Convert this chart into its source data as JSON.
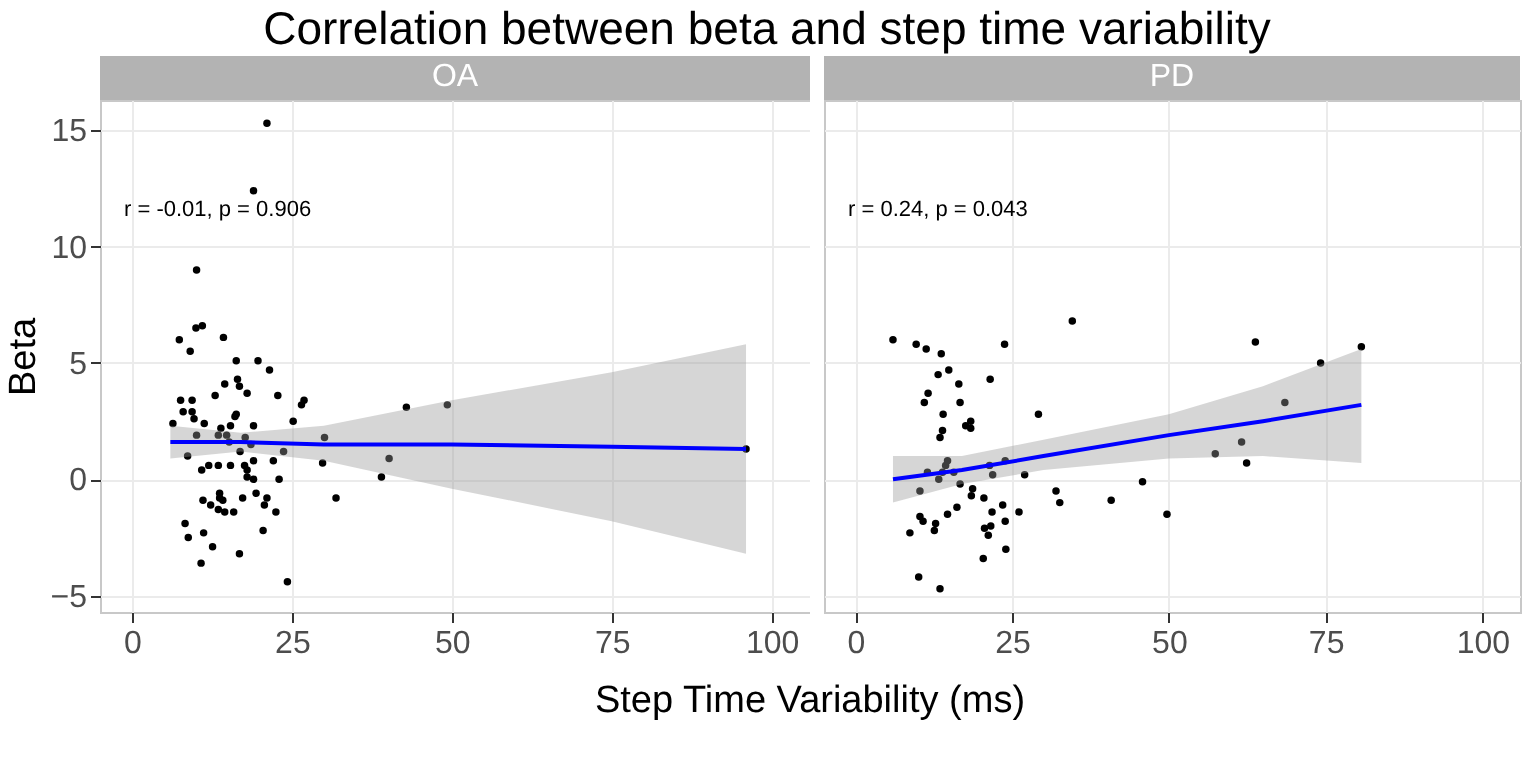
{
  "chart_data": [
    {
      "type": "scatter",
      "title": "Correlation between beta and step time variability",
      "subtitle": "OA",
      "xlabel": "Step Time Variability (ms)",
      "ylabel": "Beta",
      "annotations": [
        "r = -0.01, p = 0.906"
      ],
      "xlim": [
        -5,
        106
      ],
      "xticks": [
        0,
        25,
        50,
        75,
        100
      ],
      "ylim": [
        -5.7,
        16.3
      ],
      "yticks": [
        -5,
        0,
        5,
        10,
        15
      ],
      "grid": true,
      "series": [
        {
          "type": "scatter",
          "marker": "circle",
          "color": "#000000",
          "x": [
            21.1,
            19.0,
            10.1,
            10.0,
            11.0,
            7.4,
            9.1,
            14.3,
            16.3,
            19.7,
            21.5,
            16.5,
            16.8,
            14.5,
            18.0,
            13.0,
            22.8,
            7.6,
            9.4,
            26.9,
            26.5,
            8.0,
            9.4,
            16.3,
            16.1,
            6.4,
            9.7,
            11.3,
            13.9,
            15.4,
            14.8,
            10.1,
            19.0,
            25.2,
            17.7,
            13.5,
            15.2,
            18.6,
            30.1,
            42.9,
            49.3,
            8.7,
            16.9,
            23.7,
            29.8,
            40.2,
            39.0,
            22.1,
            10.9,
            12.0,
            13.5,
            15.4,
            17.6,
            18.0,
            19.0,
            18.0,
            19.0,
            23.0,
            11.1,
            12.3,
            13.7,
            13.7,
            14.2,
            17.3,
            19.4,
            21.1,
            13.5,
            14.5,
            15.9,
            20.7,
            22.5,
            31.9,
            8.3,
            8.8,
            11.2,
            12.6,
            20.5,
            16.8,
            10.8,
            24.3,
            96.0
          ],
          "values": [
            15.3,
            12.4,
            9.0,
            6.5,
            6.6,
            6.0,
            5.5,
            6.1,
            5.1,
            5.1,
            4.7,
            4.3,
            4.0,
            4.1,
            3.7,
            3.6,
            3.6,
            3.4,
            3.4,
            3.4,
            3.2,
            2.9,
            2.9,
            2.8,
            2.7,
            2.4,
            2.6,
            2.4,
            2.2,
            2.3,
            1.9,
            1.9,
            2.3,
            2.5,
            1.8,
            1.9,
            1.6,
            1.5,
            1.8,
            3.1,
            3.2,
            1.0,
            1.2,
            1.2,
            0.7,
            0.9,
            0.1,
            0.8,
            0.4,
            0.6,
            0.6,
            0.6,
            0.6,
            0.4,
            0.8,
            0.1,
            0.0,
            0.0,
            -0.9,
            -1.1,
            -0.6,
            -0.8,
            -0.9,
            -0.8,
            -0.6,
            -0.8,
            -1.3,
            -1.4,
            -1.4,
            -1.1,
            -1.4,
            -0.8,
            -1.9,
            -2.5,
            -2.3,
            -2.9,
            -2.2,
            -3.2,
            -3.6,
            -4.4,
            1.3
          ]
        },
        {
          "type": "line",
          "marker": "none",
          "line_style": "solid",
          "color": "#0000ff",
          "x": [
            6,
            17,
            30,
            50,
            75,
            96
          ],
          "values": [
            1.6,
            1.6,
            1.5,
            1.5,
            1.4,
            1.3
          ],
          "lower": [
            0.9,
            1.2,
            0.8,
            -0.4,
            -1.8,
            -3.2
          ],
          "upper": [
            2.3,
            2.0,
            2.3,
            3.4,
            4.6,
            5.8
          ]
        }
      ]
    },
    {
      "type": "scatter",
      "subtitle": "PD",
      "annotations": [
        "r = 0.24, p = 0.043"
      ],
      "xlim": [
        -5,
        106
      ],
      "xticks": [
        0,
        25,
        50,
        75,
        100
      ],
      "ylim": [
        -5.7,
        16.3
      ],
      "yticks": [
        -5,
        0,
        5,
        10,
        15
      ],
      "grid": true,
      "tick_labels": "x",
      "series": [
        {
          "type": "scatter",
          "marker": "circle",
          "color": "#000000",
          "x": [
            6.0,
            9.7,
            11.3,
            13.7,
            23.8,
            34.6,
            13.2,
            14.9,
            21.5,
            16.5,
            11.6,
            11.0,
            16.7,
            14.0,
            29.2,
            18.4,
            17.6,
            18.4,
            13.9,
            13.5,
            23.9,
            14.7,
            14.4,
            13.9,
            11.5,
            21.4,
            21.9,
            27.0,
            13.3,
            15.7,
            16.7,
            10.3,
            18.7,
            18.5,
            32.0,
            32.6,
            45.8,
            40.8,
            49.7,
            20.5,
            23.5,
            16.2,
            14.7,
            10.3,
            10.8,
            12.8,
            21.8,
            26.1,
            23.9,
            20.6,
            21.6,
            12.6,
            8.7,
            21.2,
            24.0,
            20.4,
            10.1,
            13.5,
            63.8,
            74.2,
            80.7,
            68.5,
            61.6,
            57.4,
            62.4
          ],
          "values": [
            6.0,
            5.8,
            5.6,
            5.4,
            5.8,
            6.8,
            4.5,
            4.7,
            4.3,
            4.1,
            3.7,
            3.3,
            3.3,
            2.8,
            2.8,
            2.5,
            2.3,
            2.2,
            2.1,
            1.8,
            0.8,
            0.8,
            0.6,
            0.3,
            0.3,
            0.6,
            0.2,
            0.2,
            0.0,
            0.3,
            -0.2,
            -0.5,
            -0.4,
            -0.7,
            -0.5,
            -1.0,
            -0.1,
            -0.9,
            -1.5,
            -0.8,
            -1.1,
            -1.2,
            -1.5,
            -1.6,
            -1.8,
            -1.9,
            -1.4,
            -1.4,
            -1.8,
            -2.1,
            -2.0,
            -2.2,
            -2.3,
            -2.4,
            -3.0,
            -3.4,
            -4.2,
            -4.7,
            5.9,
            5.0,
            5.7,
            3.3,
            1.6,
            1.1,
            0.7
          ]
        },
        {
          "type": "line",
          "marker": "none",
          "line_style": "solid",
          "color": "#0000ff",
          "x": [
            6,
            17,
            30,
            50,
            65,
            80.7
          ],
          "values": [
            0.0,
            0.4,
            1.0,
            1.9,
            2.5,
            3.2
          ],
          "lower": [
            -1.0,
            -0.2,
            0.4,
            0.9,
            1.0,
            0.7
          ],
          "upper": [
            1.0,
            1.0,
            1.7,
            2.8,
            4.0,
            5.6
          ]
        }
      ]
    }
  ]
}
